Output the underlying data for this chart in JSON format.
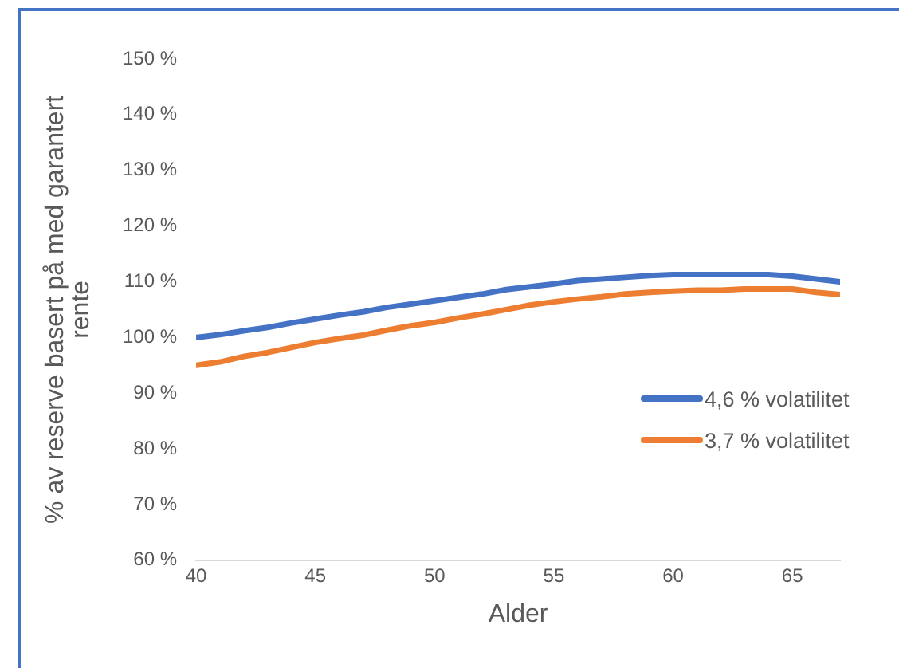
{
  "chart_data": {
    "type": "line",
    "xlabel": "Alder",
    "ylabel": "% av reserve basert på med garantert rente",
    "x": [
      40,
      41,
      42,
      43,
      44,
      45,
      46,
      47,
      48,
      49,
      50,
      51,
      52,
      53,
      54,
      55,
      56,
      57,
      58,
      59,
      60,
      61,
      62,
      63,
      64,
      65,
      66,
      67
    ],
    "series": [
      {
        "name": "4,6 % volatilitet",
        "color": "#4472c4",
        "values": [
          100,
          100.5,
          101.2,
          101.8,
          102.6,
          103.3,
          104,
          104.6,
          105.4,
          106,
          106.6,
          107.2,
          107.8,
          108.6,
          109.1,
          109.6,
          110.2,
          110.5,
          110.8,
          111.1,
          111.3,
          111.3,
          111.3,
          111.3,
          111.3,
          111,
          110.5,
          110
        ]
      },
      {
        "name": "3,7 % volatilitet",
        "color": "#ed7d31",
        "values": [
          95,
          95.6,
          96.6,
          97.3,
          98.2,
          99.1,
          99.8,
          100.4,
          101.3,
          102.1,
          102.7,
          103.5,
          104.2,
          105,
          105.8,
          106.4,
          106.9,
          107.3,
          107.8,
          108.1,
          108.3,
          108.5,
          108.5,
          108.7,
          108.7,
          108.7,
          108.1,
          107.7
        ]
      }
    ],
    "xlim": [
      40,
      67
    ],
    "xticks": [
      40,
      45,
      50,
      55,
      60,
      65
    ],
    "ylim": [
      60,
      150
    ],
    "yticks": [
      {
        "value": 60,
        "label": "60 %"
      },
      {
        "value": 70,
        "label": "70 %"
      },
      {
        "value": 80,
        "label": "80 %"
      },
      {
        "value": 90,
        "label": "90 %"
      },
      {
        "value": 100,
        "label": "100 %"
      },
      {
        "value": 110,
        "label": "110 %"
      },
      {
        "value": 120,
        "label": "120 %"
      },
      {
        "value": 130,
        "label": "130 %"
      },
      {
        "value": 140,
        "label": "140 %"
      },
      {
        "value": 150,
        "label": "150 %"
      }
    ],
    "grid": false,
    "legend": "right",
    "marker": "none",
    "line_style": "solid"
  }
}
